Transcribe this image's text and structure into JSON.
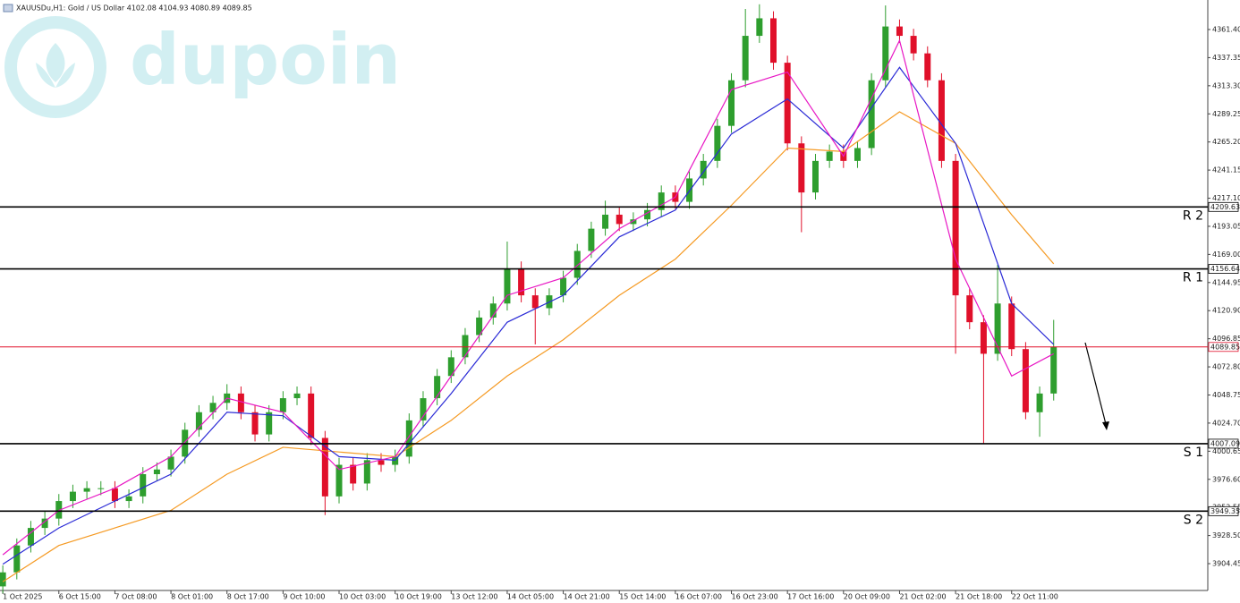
{
  "chart_data": {
    "type": "candlestick",
    "header": "XAUUSDu,H1: Gold / US Dollar  4102.08 4104.93 4080.89 4089.85",
    "watermark": "dupoin",
    "up_color": "#2e9e2e",
    "down_color": "#e0102a",
    "open": [
      3885,
      3897,
      3920,
      3935,
      3943,
      3958,
      3966,
      3969,
      3969,
      3958,
      3962,
      3981,
      3985,
      3996,
      4019,
      4034,
      4042,
      4050,
      4034,
      4015,
      4034,
      4046,
      4050,
      4012,
      3962,
      3989,
      3973,
      3993,
      3989,
      3996,
      4027,
      4046,
      4065,
      4081,
      4100,
      4115,
      4127,
      4157,
      4134,
      4123,
      4134,
      4149,
      4172,
      4191,
      4203,
      4195,
      4199,
      4207,
      4222,
      4214,
      4234,
      4249,
      4279,
      4318,
      4356,
      4371,
      4333,
      4264,
      4222,
      4249,
      4257,
      4249,
      4260,
      4318,
      4364,
      4356,
      4341,
      4318,
      4249,
      4134,
      4111,
      4084,
      4127,
      4088,
      4034,
      4050
    ],
    "high": [
      3903,
      3926,
      3941,
      3949,
      3964,
      3972,
      3975,
      3975,
      3975,
      3968,
      3987,
      3991,
      4002,
      4025,
      4040,
      4048,
      4058,
      4056,
      4040,
      4040,
      4052,
      4056,
      4056,
      4018,
      3995,
      3995,
      3999,
      3999,
      4002,
      4033,
      4052,
      4071,
      4087,
      4106,
      4121,
      4133,
      4180,
      4163,
      4140,
      4140,
      4155,
      4178,
      4197,
      4215,
      4209,
      4205,
      4213,
      4228,
      4228,
      4240,
      4255,
      4285,
      4324,
      4379,
      4383,
      4377,
      4339,
      4270,
      4255,
      4263,
      4263,
      4266,
      4324,
      4382,
      4370,
      4362,
      4347,
      4324,
      4255,
      4140,
      4117,
      4160,
      4133,
      4094,
      4056,
      4113
    ],
    "low": [
      3879,
      3891,
      3914,
      3929,
      3937,
      3952,
      3960,
      3963,
      3952,
      3952,
      3956,
      3975,
      3979,
      3990,
      4013,
      4028,
      4036,
      4028,
      4009,
      4009,
      4028,
      4040,
      4006,
      3946,
      3956,
      3967,
      3967,
      3983,
      3983,
      3990,
      4021,
      4040,
      4059,
      4075,
      4094,
      4109,
      4121,
      4128,
      4092,
      4117,
      4128,
      4143,
      4166,
      4185,
      4189,
      4189,
      4193,
      4201,
      4208,
      4208,
      4228,
      4243,
      4273,
      4312,
      4350,
      4327,
      4258,
      4188,
      4216,
      4243,
      4243,
      4243,
      4254,
      4312,
      4350,
      4335,
      4312,
      4243,
      4084,
      4105,
      4007,
      4078,
      4082,
      4028,
      4013,
      4044
    ],
    "close": [
      3897,
      3920,
      3935,
      3943,
      3958,
      3966,
      3969,
      3969,
      3958,
      3962,
      3981,
      3985,
      3996,
      4019,
      4034,
      4042,
      4050,
      4034,
      4015,
      4034,
      4046,
      4050,
      4012,
      3962,
      3989,
      3973,
      3993,
      3989,
      3996,
      4027,
      4046,
      4065,
      4081,
      4100,
      4115,
      4127,
      4157,
      4134,
      4123,
      4134,
      4149,
      4172,
      4191,
      4203,
      4195,
      4199,
      4207,
      4222,
      4214,
      4234,
      4249,
      4279,
      4318,
      4356,
      4371,
      4333,
      4264,
      4222,
      4249,
      4257,
      4249,
      4260,
      4318,
      4364,
      4356,
      4341,
      4318,
      4249,
      4134,
      4111,
      4084,
      4127,
      4088,
      4034,
      4050,
      4089.85
    ],
    "ma": [
      {
        "color": "#f59a23",
        "x": [
          0,
          4,
          8,
          12,
          16,
          20,
          24,
          28,
          32,
          36,
          40,
          44,
          48,
          52,
          56,
          60,
          64,
          68,
          72,
          75
        ],
        "values": [
          3889,
          3920,
          3935,
          3950,
          3981,
          4004,
          4000,
          3996,
          4027,
          4065,
          4096,
          4134,
          4165,
          4211,
          4260,
          4257,
          4291,
          4264,
          4203,
          4161
        ]
      },
      {
        "color": "#2b2bd6",
        "x": [
          0,
          4,
          8,
          12,
          16,
          20,
          24,
          28,
          32,
          36,
          40,
          44,
          48,
          52,
          56,
          60,
          64,
          68,
          72,
          75
        ],
        "values": [
          3904,
          3935,
          3958,
          3981,
          4034,
          4031,
          3996,
          3993,
          4050,
          4111,
          4134,
          4184,
          4207,
          4272,
          4302,
          4260,
          4329,
          4264,
          4127,
          4092
        ]
      },
      {
        "color": "#e817c4",
        "x": [
          0,
          4,
          8,
          12,
          16,
          20,
          24,
          28,
          32,
          36,
          40,
          44,
          48,
          52,
          56,
          60,
          64,
          68,
          72,
          75
        ],
        "values": [
          3912,
          3950,
          3969,
          3996,
          4046,
          4034,
          3985,
          3996,
          4065,
          4134,
          4149,
          4191,
          4218,
          4310,
          4325,
          4253,
          4352,
          4165,
          4065,
          4084
        ]
      }
    ],
    "levels": [
      {
        "label": "R 2",
        "value": 4209.63,
        "color": "#000000"
      },
      {
        "label": "R 1",
        "value": 4156.64,
        "color": "#000000"
      },
      {
        "value": 4089.85,
        "color": "#e0102a"
      },
      {
        "label": "S 1",
        "value": 4007.09,
        "color": "#000000"
      },
      {
        "label": "S 2",
        "value": 3949.35,
        "color": "#000000"
      }
    ],
    "xlim": [
      -0.2,
      86
    ],
    "xticks": [
      {
        "value": 0,
        "label": "1 Oct 2025"
      },
      {
        "value": 4,
        "label": "6 Oct 15:00"
      },
      {
        "value": 8,
        "label": "7 Oct 08:00"
      },
      {
        "value": 12,
        "label": "8 Oct 01:00"
      },
      {
        "value": 16,
        "label": "8 Oct 17:00"
      },
      {
        "value": 20,
        "label": "9 Oct 10:00"
      },
      {
        "value": 24,
        "label": "10 Oct 03:00"
      },
      {
        "value": 28,
        "label": "10 Oct 19:00"
      },
      {
        "value": 32,
        "label": "13 Oct 12:00"
      },
      {
        "value": 36,
        "label": "14 Oct 05:00"
      },
      {
        "value": 40,
        "label": "14 Oct 21:00"
      },
      {
        "value": 44,
        "label": "15 Oct 14:00"
      },
      {
        "value": 48,
        "label": "16 Oct 07:00"
      },
      {
        "value": 52,
        "label": "16 Oct 23:00"
      },
      {
        "value": 56,
        "label": "17 Oct 16:00"
      },
      {
        "value": 60,
        "label": "20 Oct 09:00"
      },
      {
        "value": 64,
        "label": "21 Oct 02:00"
      },
      {
        "value": 68,
        "label": "21 Oct 18:00"
      },
      {
        "value": 72,
        "label": "22 Oct 11:00"
      }
    ],
    "ylim": [
      3881.5,
      4386.66
    ],
    "yticks": [
      {
        "value": 4361.4,
        "label": "4361.40"
      },
      {
        "value": 4337.35,
        "label": "4337.35"
      },
      {
        "value": 4313.3,
        "label": "4313.30"
      },
      {
        "value": 4289.25,
        "label": "4289.25"
      },
      {
        "value": 4265.2,
        "label": "4265.20"
      },
      {
        "value": 4241.15,
        "label": "4241.15"
      },
      {
        "value": 4217.1,
        "label": "4217.10"
      },
      {
        "value": 4193.05,
        "label": "4193.05"
      },
      {
        "value": 4169,
        "label": "4169.00"
      },
      {
        "value": 4144.95,
        "label": "4144.95"
      },
      {
        "value": 4120.9,
        "label": "4120.90"
      },
      {
        "value": 4096.85,
        "label": "4096.85"
      },
      {
        "value": 4072.8,
        "label": "4072.80"
      },
      {
        "value": 4048.75,
        "label": "4048.75"
      },
      {
        "value": 4024.7,
        "label": "4024.70"
      },
      {
        "value": 4000.65,
        "label": "4000.65"
      },
      {
        "value": 3976.6,
        "label": "3976.60"
      },
      {
        "value": 3952.55,
        "label": "3952.55"
      },
      {
        "value": 3928.5,
        "label": "3928.50"
      },
      {
        "value": 3904.45,
        "label": "3904.45"
      }
    ]
  }
}
